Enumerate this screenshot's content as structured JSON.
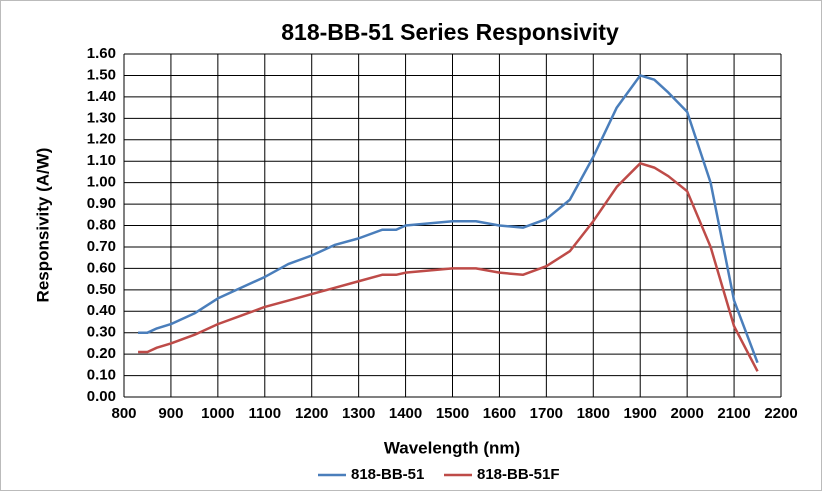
{
  "chart_data": {
    "type": "line",
    "title": "818-BB-51 Series Responsivity",
    "x_label": "Wavelength (nm)",
    "y_label": "Responsivity (A/W)",
    "x": [
      830,
      850,
      870,
      900,
      950,
      1000,
      1050,
      1100,
      1150,
      1200,
      1250,
      1300,
      1350,
      1380,
      1400,
      1450,
      1500,
      1550,
      1600,
      1650,
      1700,
      1750,
      1800,
      1850,
      1900,
      1930,
      1960,
      2000,
      2050,
      2100,
      2150
    ],
    "series": [
      {
        "name": "818-BB-51",
        "color": "#4a7ebb",
        "values": [
          0.3,
          0.3,
          0.32,
          0.34,
          0.39,
          0.46,
          0.51,
          0.56,
          0.62,
          0.66,
          0.71,
          0.74,
          0.78,
          0.78,
          0.8,
          0.81,
          0.82,
          0.82,
          0.8,
          0.79,
          0.83,
          0.92,
          1.12,
          1.35,
          1.5,
          1.48,
          1.42,
          1.33,
          1.0,
          0.45,
          0.16
        ]
      },
      {
        "name": "818-BB-51F",
        "color": "#be4b48",
        "values": [
          0.21,
          0.21,
          0.23,
          0.25,
          0.29,
          0.34,
          0.38,
          0.42,
          0.45,
          0.48,
          0.51,
          0.54,
          0.57,
          0.57,
          0.58,
          0.59,
          0.6,
          0.6,
          0.58,
          0.57,
          0.61,
          0.68,
          0.82,
          0.98,
          1.09,
          1.07,
          1.03,
          0.96,
          0.7,
          0.33,
          0.12
        ]
      }
    ],
    "xlim": [
      800,
      2200
    ],
    "xticks": [
      800,
      900,
      1000,
      1100,
      1200,
      1300,
      1400,
      1500,
      1600,
      1700,
      1800,
      1900,
      2000,
      2100,
      2200
    ],
    "ylim": [
      0,
      1.6
    ],
    "yticks": [
      {
        "value": 0,
        "label": "0.00"
      },
      {
        "value": 0.1,
        "label": "0.10"
      },
      {
        "value": 0.2,
        "label": "0.20"
      },
      {
        "value": 0.3,
        "label": "0.30"
      },
      {
        "value": 0.4,
        "label": "0.40"
      },
      {
        "value": 0.5,
        "label": "0.50"
      },
      {
        "value": 0.6,
        "label": "0.60"
      },
      {
        "value": 0.7,
        "label": "0.70"
      },
      {
        "value": 0.8,
        "label": "0.80"
      },
      {
        "value": 0.9,
        "label": "0.90"
      },
      {
        "value": 1.0,
        "label": "1.00"
      },
      {
        "value": 1.1,
        "label": "1.10"
      },
      {
        "value": 1.2,
        "label": "1.20"
      },
      {
        "value": 1.3,
        "label": "1.30"
      },
      {
        "value": 1.4,
        "label": "1.40"
      },
      {
        "value": 1.5,
        "label": "1.50"
      },
      {
        "value": 1.6,
        "label": "1.60"
      }
    ],
    "grid": true,
    "legend": "bottom"
  }
}
